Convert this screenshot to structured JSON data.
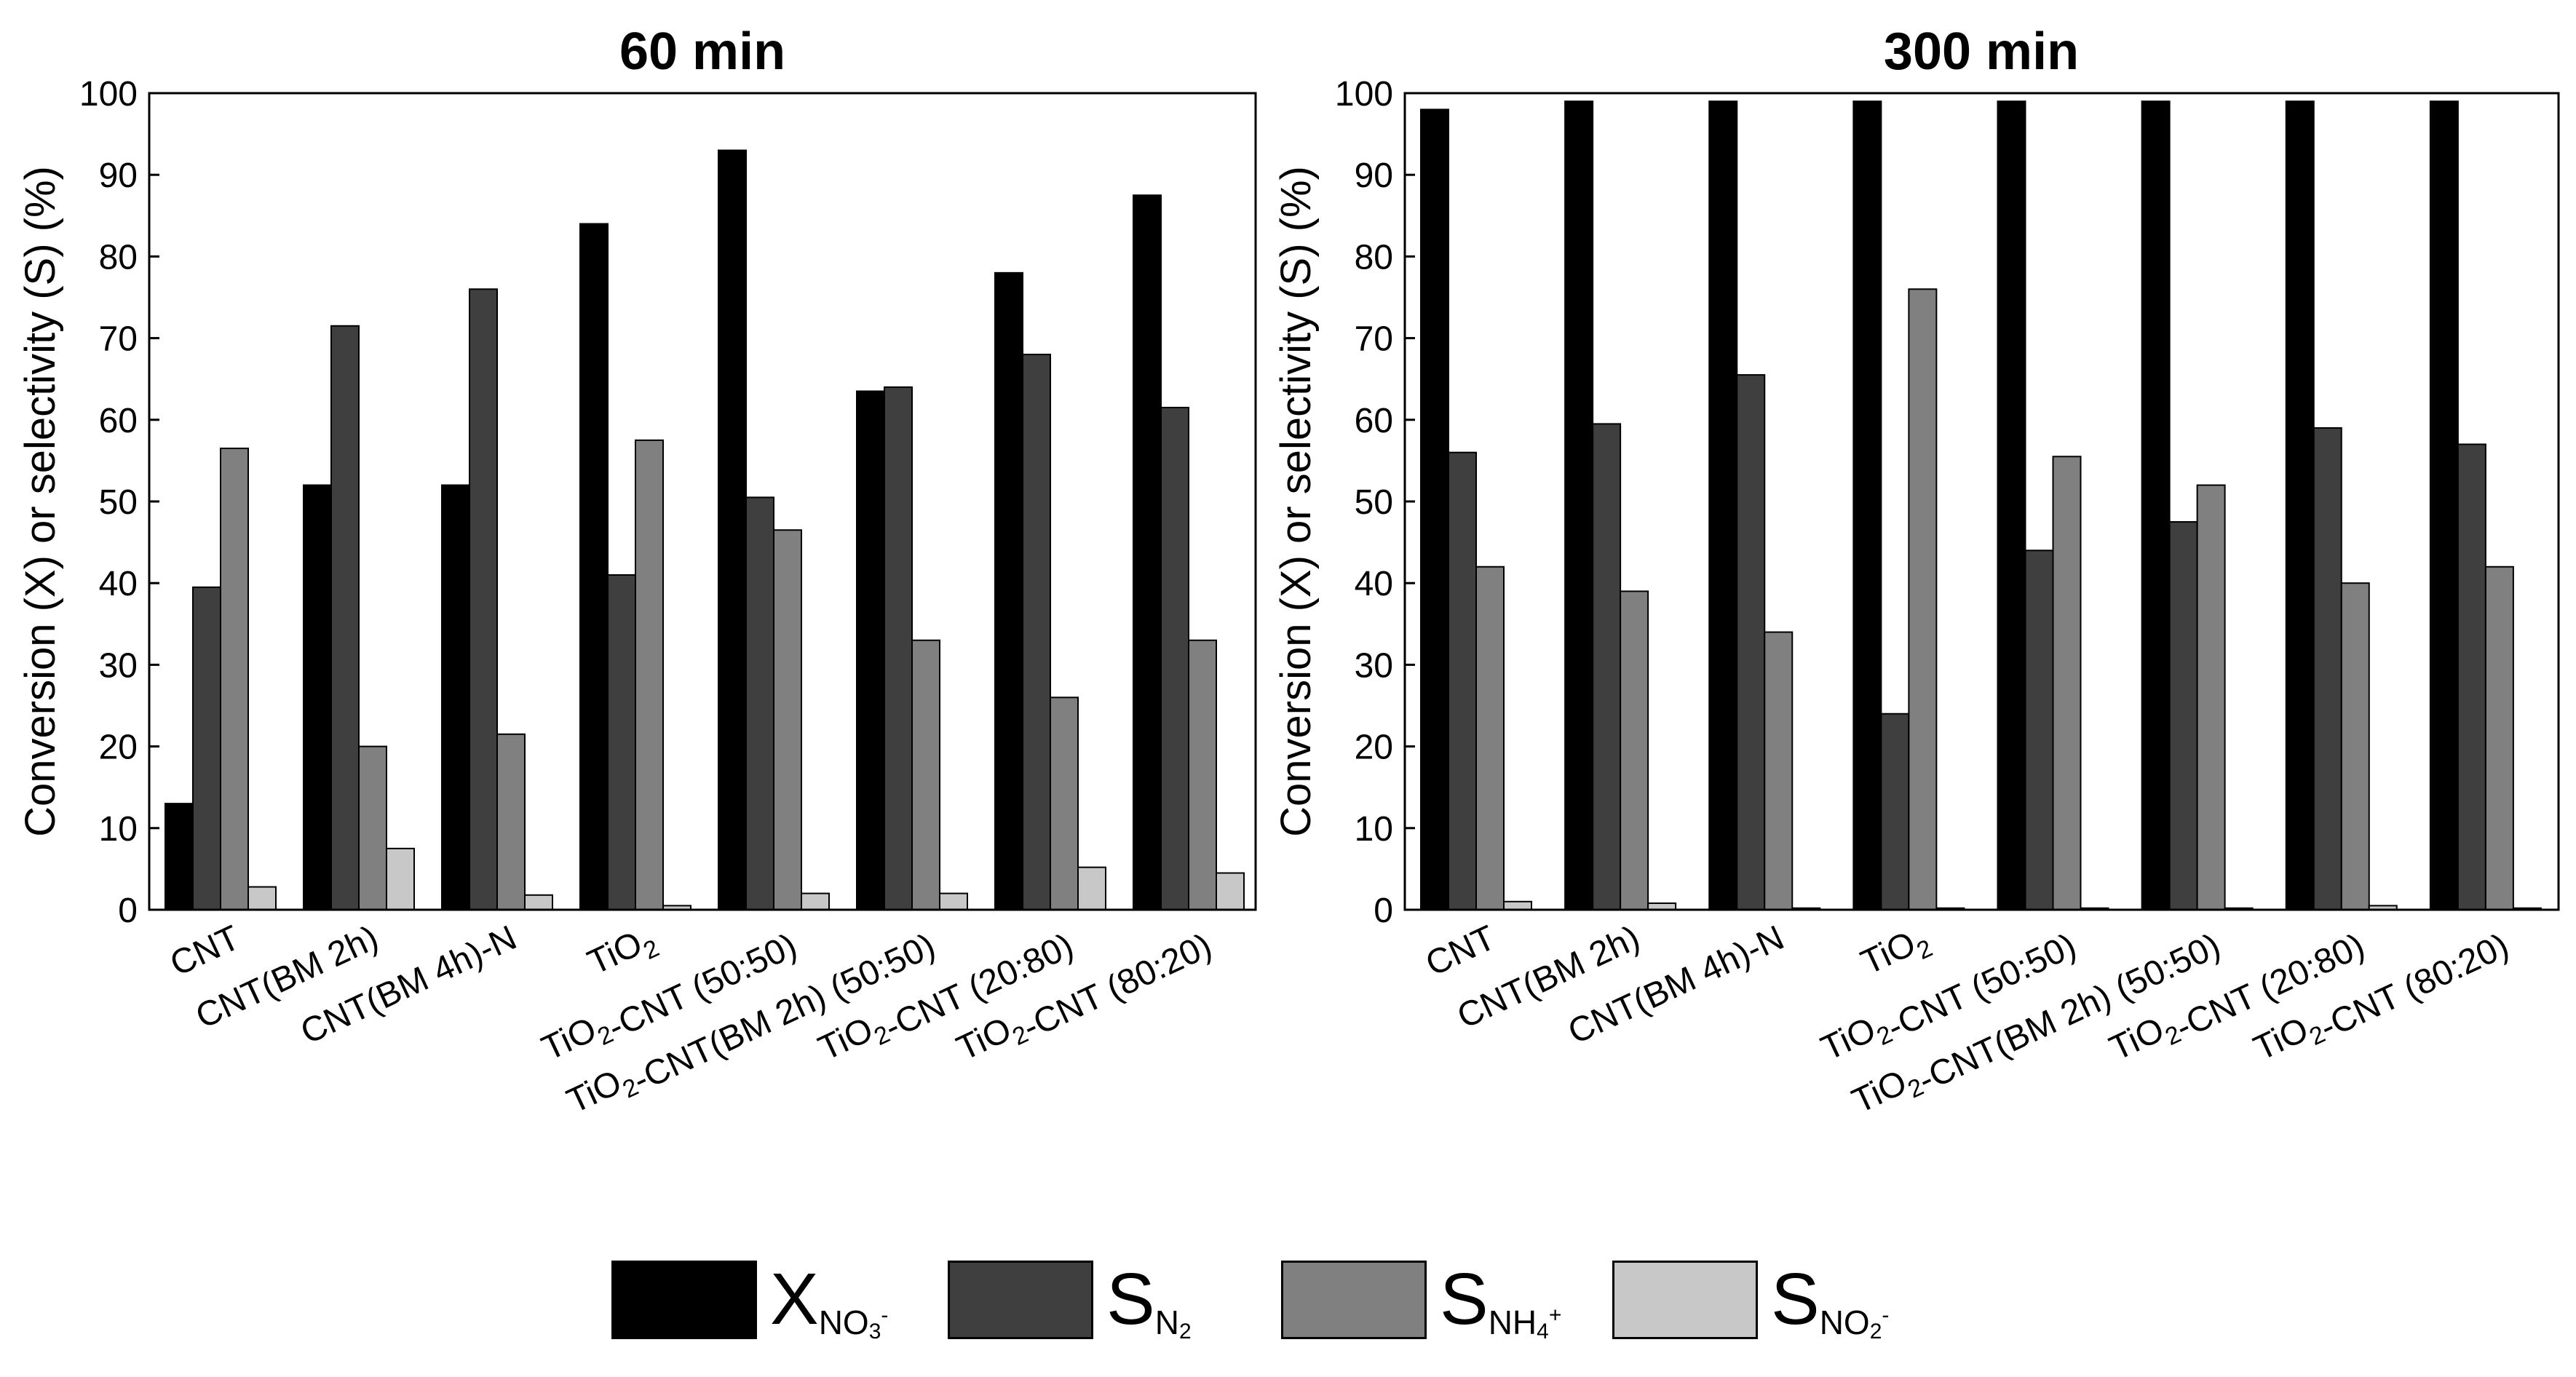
{
  "chart_data": [
    {
      "type": "bar",
      "title": "60 min",
      "xlabel": "",
      "ylabel": "Conversion (X) or selectivity (S) (%)",
      "ylim": [
        0,
        100
      ],
      "yticks": [
        "0",
        "10",
        "20",
        "30",
        "40",
        "50",
        "60",
        "70",
        "80",
        "90",
        "100"
      ],
      "categories": [
        "CNT",
        "CNT(BM 2h)",
        "CNT(BM 4h)-N",
        "TiO2",
        "TiO2-CNT (50:50)",
        "TiO2-CNT(BM 2h) (50:50)",
        "TiO2-CNT (20:80)",
        "TiO2-CNT (80:20)"
      ],
      "series": [
        {
          "name": "X_NO3-",
          "values": [
            13,
            52,
            52,
            84,
            93,
            63.5,
            78,
            87.5
          ]
        },
        {
          "name": "S_N2",
          "values": [
            39.5,
            71.5,
            76,
            41,
            50.5,
            64,
            68,
            61.5
          ]
        },
        {
          "name": "S_NH4+",
          "values": [
            56.5,
            20,
            21.5,
            57.5,
            46.5,
            33,
            26,
            33
          ]
        },
        {
          "name": "S_NO2-",
          "values": [
            2.8,
            7.5,
            1.8,
            0.5,
            2,
            2,
            5.2,
            4.5
          ]
        }
      ]
    },
    {
      "type": "bar",
      "title": "300 min",
      "xlabel": "",
      "ylabel": "Conversion (X) or selectivity (S) (%)",
      "ylim": [
        0,
        100
      ],
      "yticks": [
        "0",
        "10",
        "20",
        "30",
        "40",
        "50",
        "60",
        "70",
        "80",
        "90",
        "100"
      ],
      "categories": [
        "CNT",
        "CNT(BM 2h)",
        "CNT(BM 4h)-N",
        "TiO2",
        "TiO2-CNT (50:50)",
        "TiO2-CNT(BM 2h) (50:50)",
        "TiO2-CNT (20:80)",
        "TiO2-CNT (80:20)"
      ],
      "series": [
        {
          "name": "X_NO3-",
          "values": [
            98,
            99,
            99,
            99,
            99,
            99,
            99,
            99
          ]
        },
        {
          "name": "S_N2",
          "values": [
            56,
            59.5,
            65.5,
            24,
            44,
            47.5,
            59,
            57
          ]
        },
        {
          "name": "S_NH4+",
          "values": [
            42,
            39,
            34,
            76,
            55.5,
            52,
            40,
            42
          ]
        },
        {
          "name": "S_NO2-",
          "values": [
            1,
            0.8,
            0.2,
            0.2,
            0.2,
            0.2,
            0.5,
            0.2
          ]
        }
      ]
    }
  ],
  "colors": {
    "X_NO3-": "#000000",
    "S_N2": "#3f3f3f",
    "S_NH4+": "#808080",
    "S_NO2-": "#c8c8c8"
  },
  "legend": [
    {
      "key": "X_NO3-",
      "main": "X",
      "sub": "NO",
      "subsub": "3",
      "sup": "-"
    },
    {
      "key": "S_N2",
      "main": "S",
      "sub": "N",
      "subsub": "2",
      "sup": ""
    },
    {
      "key": "S_NH4+",
      "main": "S",
      "sub": "NH",
      "subsub": "4",
      "sup": "+"
    },
    {
      "key": "S_NO2-",
      "main": "S",
      "sub": "NO",
      "subsub": "2",
      "sup": "-"
    }
  ]
}
